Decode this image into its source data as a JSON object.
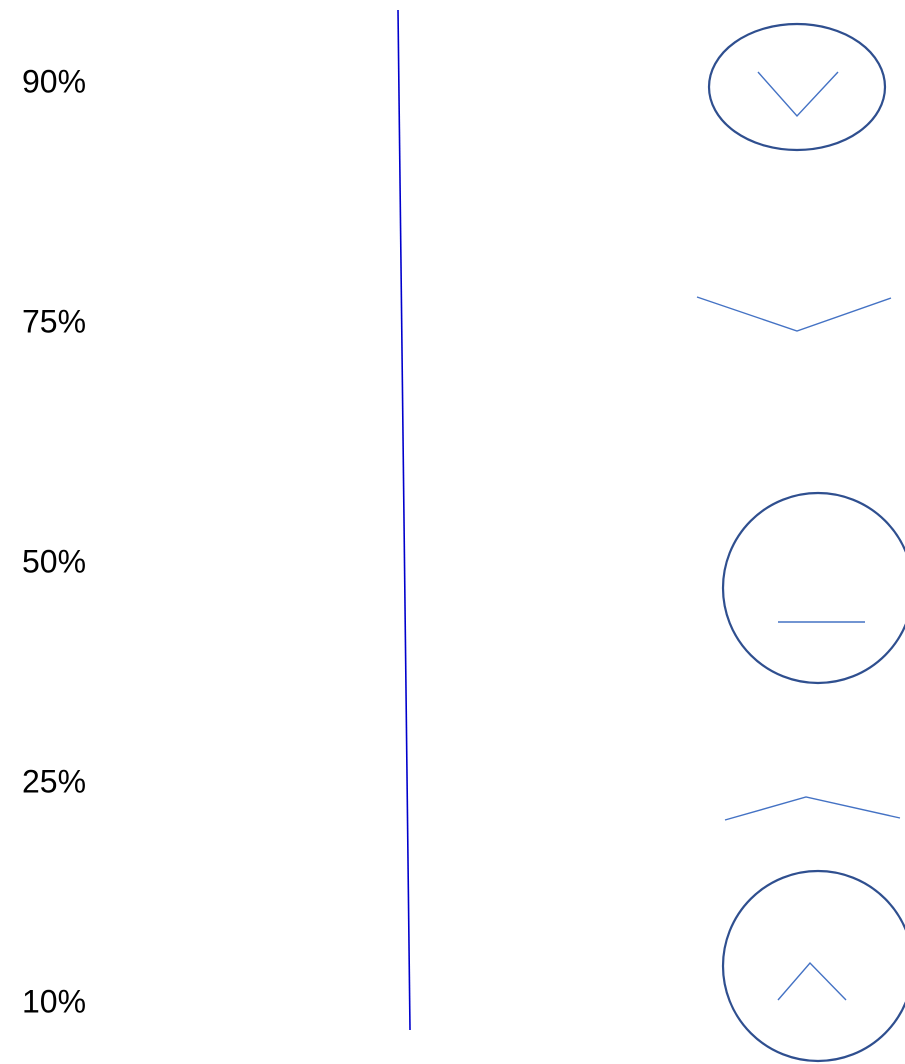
{
  "labels": [
    "90%",
    "75%",
    "50%",
    "25%",
    "10%"
  ]
}
